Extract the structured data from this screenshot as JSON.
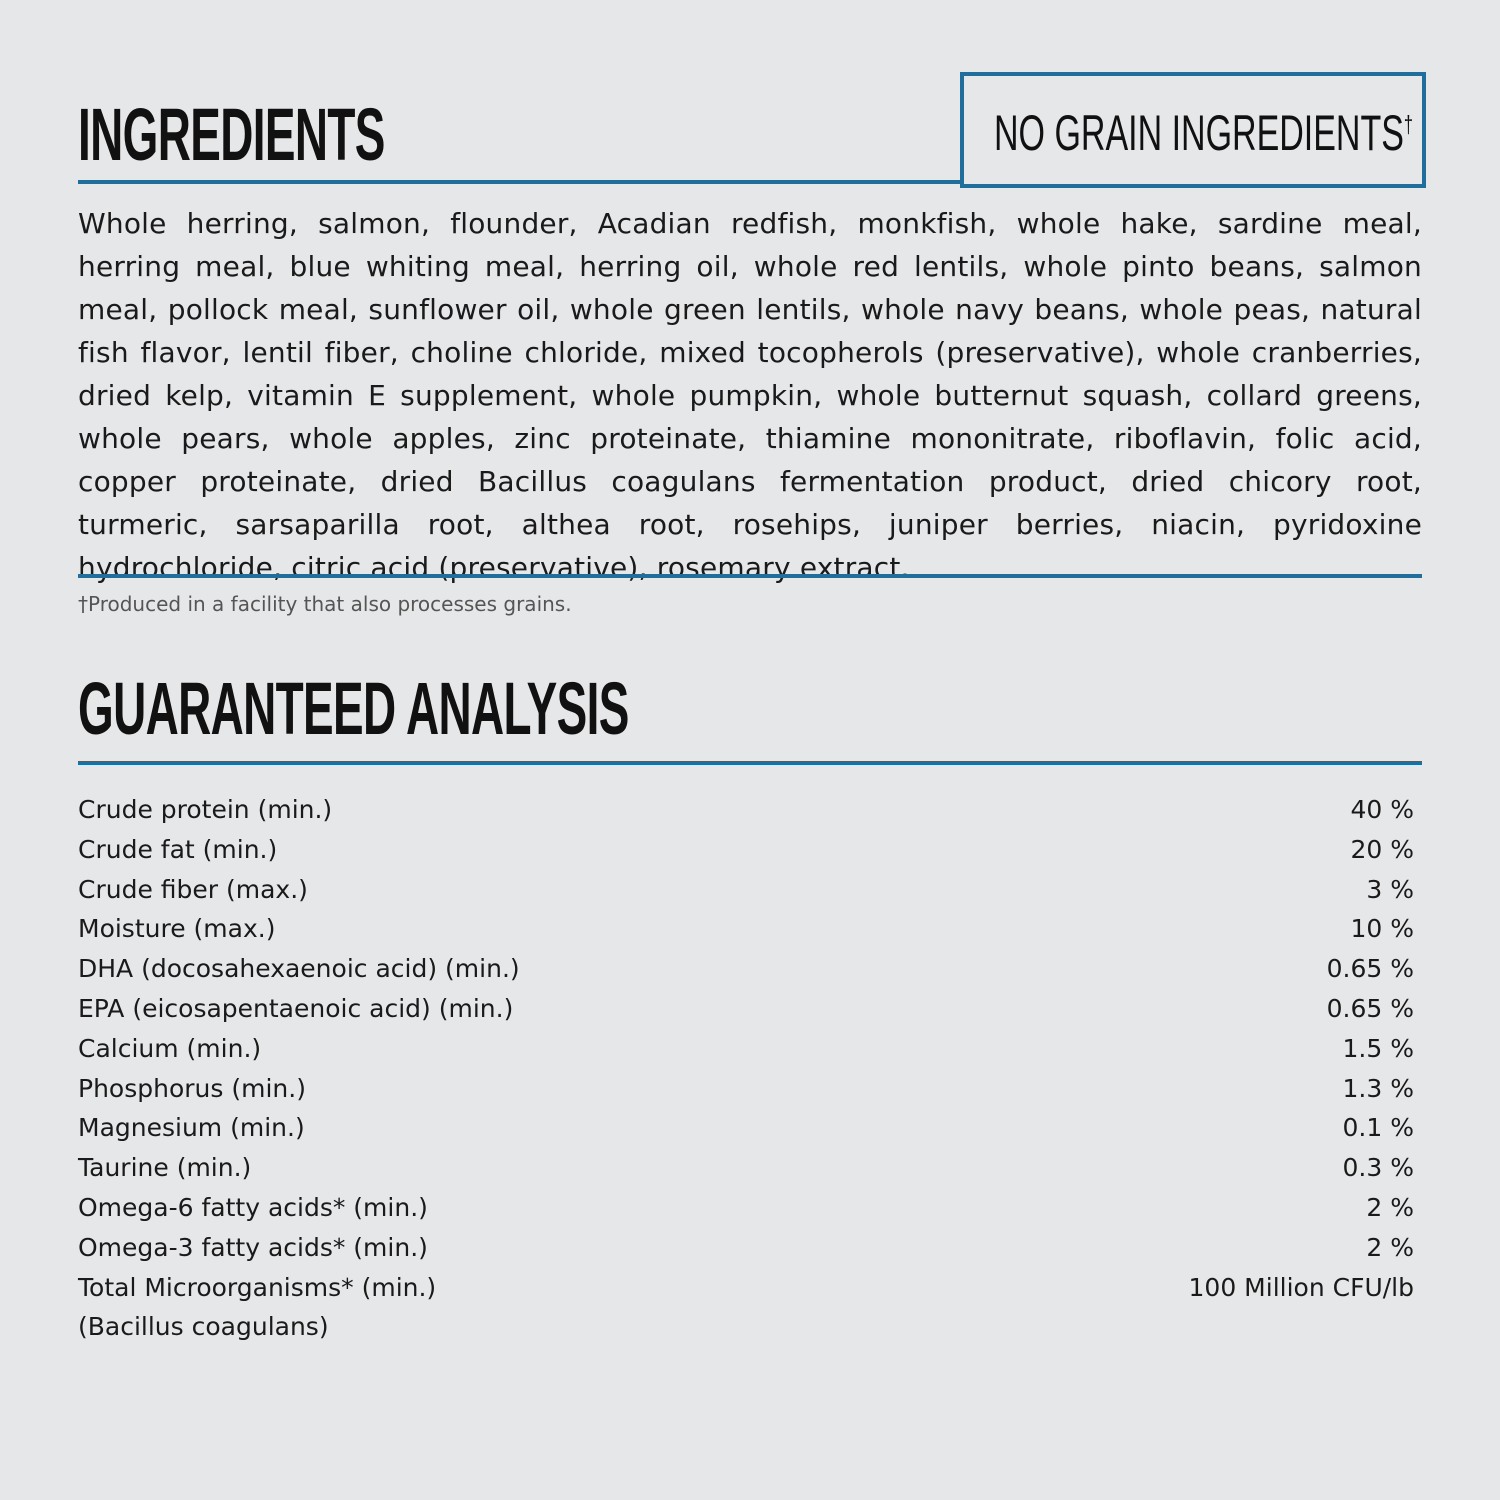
{
  "ingredients": {
    "title": "INGREDIENTS",
    "badge": "NO GRAIN INGREDIENTS",
    "badge_mark": "†",
    "text": "Whole herring, salmon, flounder, Acadian redfish, monkfish, whole hake, sardine meal, herring meal, blue whiting meal, herring oil, whole red lentils, whole pinto beans, salmon meal, pollock meal, sunflower oil, whole green lentils, whole navy beans, whole peas, natural fish flavor, lentil fiber, choline chloride, mixed tocopherols (preservative), whole cranberries, dried kelp, vitamin E supplement, whole pumpkin, whole butternut squash, collard greens, whole pears, whole apples, zinc proteinate, thiamine mononitrate, riboflavin, folic acid, copper proteinate, dried Bacillus coagulans fermentation product, dried chicory root, turmeric, sarsaparilla root, althea root, rosehips, juniper berries, niacin, pyridoxine hydrochloride, citric acid (preservative), rosemary extract.",
    "footnote": "†Produced in a facility that also processes grains."
  },
  "analysis": {
    "title": "GUARANTEED ANALYSIS",
    "rows": [
      {
        "label": "Crude protein (min.)",
        "value": "40 %"
      },
      {
        "label": "Crude fat (min.)",
        "value": "20 %"
      },
      {
        "label": "Crude fiber (max.)",
        "value": "3 %"
      },
      {
        "label": "Moisture (max.)",
        "value": "10 %"
      },
      {
        "label": "DHA (docosahexaenoic acid) (min.)",
        "value": "0.65 %"
      },
      {
        "label": "EPA (eicosapentaenoic acid) (min.)",
        "value": "0.65 %"
      },
      {
        "label": "Calcium (min.)",
        "value": "1.5 %"
      },
      {
        "label": "Phosphorus (min.)",
        "value": "1.3 %"
      },
      {
        "label": "Magnesium (min.)",
        "value": "0.1 %"
      },
      {
        "label": "Taurine (min.)",
        "value": "0.3 %"
      },
      {
        "label": "Omega-6 fatty acids* (min.)",
        "value": "2 %"
      },
      {
        "label": "Omega-3 fatty acids* (min.)",
        "value": "2 %"
      },
      {
        "label": "Total Microorganisms* (min.)",
        "value": "100 Million CFU/lb"
      }
    ],
    "subnote": "(Bacillus coagulans)"
  },
  "colors": {
    "accent": "#1f6e9c",
    "background": "#e6e7e9"
  }
}
